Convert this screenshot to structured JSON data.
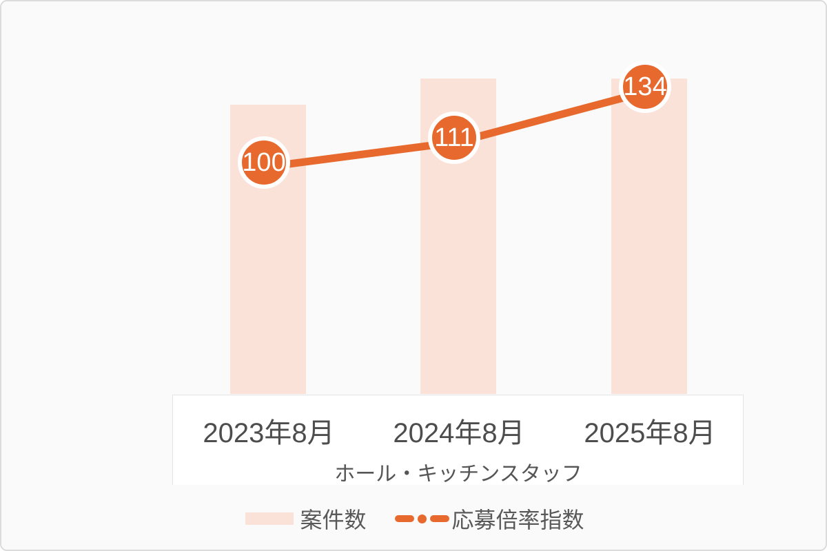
{
  "chart_data": {
    "type": "combo",
    "categories": [
      "2023年8月",
      "2024年8月",
      "2025年8月"
    ],
    "xlabel": "ホール・キッチンスタッフ",
    "series": [
      {
        "name": "案件数",
        "type": "bar",
        "values": [
          100,
          109,
          109
        ],
        "values_estimated": true
      },
      {
        "name": "応募倍率指数",
        "type": "line",
        "values": [
          100,
          111,
          134
        ],
        "point_labels": [
          "100",
          "111",
          "134"
        ]
      }
    ],
    "legend_position": "bottom",
    "grid": false,
    "y_axis_visible": false,
    "ylim_line": [
      90,
      145
    ]
  },
  "legend": {
    "bar_label": "案件数",
    "line_label": "応募倍率指数"
  },
  "colors": {
    "accent_orange": "#e7692d",
    "bar_fill": "#fae2d9",
    "axis_text": "#4d4d4d",
    "legend_text": "#595959",
    "marker_text": "#ffffff",
    "frame_border": "#dcdcdc",
    "background": "#fafafa"
  }
}
